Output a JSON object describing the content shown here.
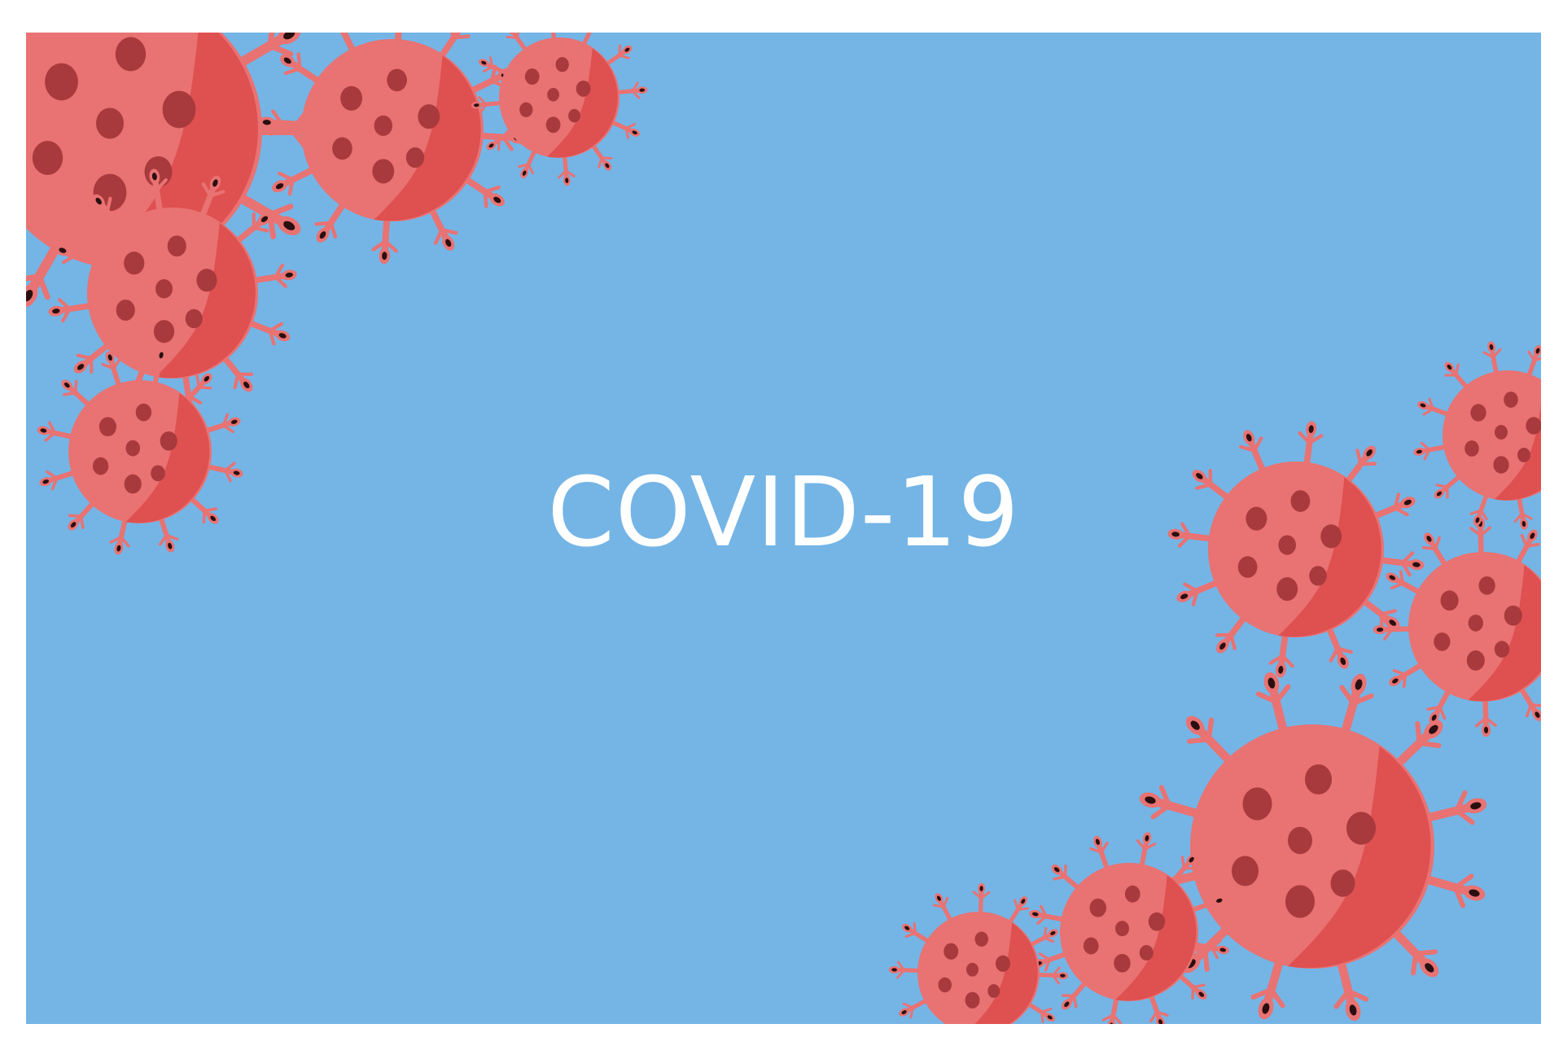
{
  "headline": {
    "text": "COVID-19"
  },
  "illustration": {
    "icon": "coronavirus-icon",
    "colors": {
      "background_border": "#ffffff",
      "panel": "#74b5e6",
      "virus_body": "#e97272",
      "virus_shade": "#df5050",
      "virus_spot": "#a83a3d",
      "spike_tip": "#2a0f10",
      "text": "#ffffff"
    }
  }
}
